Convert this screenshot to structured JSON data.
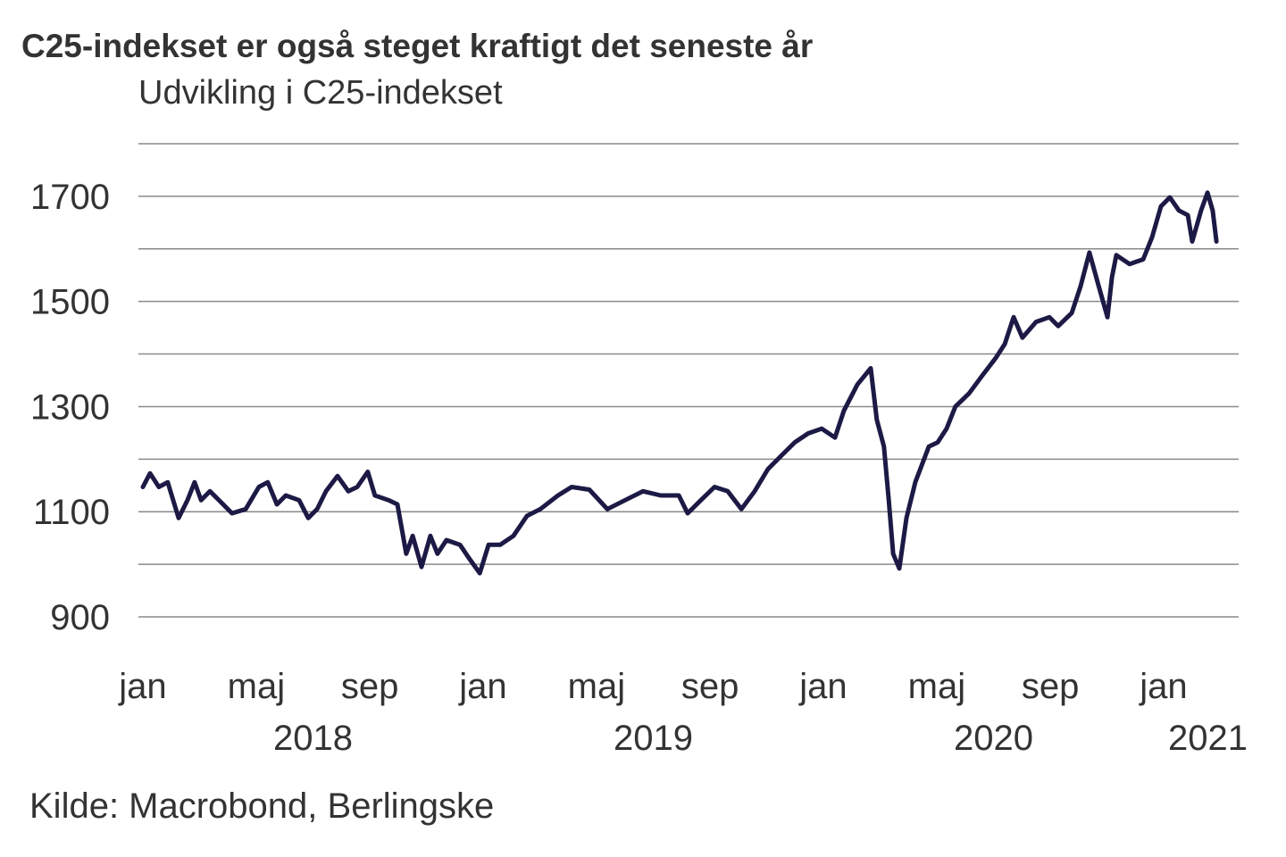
{
  "chart_data": {
    "type": "line",
    "title": "C25-indekset er også steget kraftigt det seneste år",
    "subtitle": "Udvikling i C25-indekset",
    "source": "Kilde: Macrobond, Berlingske",
    "xlabel": "",
    "ylabel": "",
    "ylim": [
      900,
      1800
    ],
    "xlim": [
      2018.0,
      2021.24
    ],
    "grid": true,
    "legend": "none",
    "y_ticks": [
      900,
      1000,
      1100,
      1200,
      1300,
      1400,
      1500,
      1600,
      1700,
      1800
    ],
    "y_tick_labels": [
      {
        "value": 900,
        "label": "900"
      },
      {
        "value": 1100,
        "label": "1100"
      },
      {
        "value": 1300,
        "label": "1300"
      },
      {
        "value": 1500,
        "label": "1500"
      },
      {
        "value": 1700,
        "label": "1700"
      }
    ],
    "x_month_labels": [
      {
        "t": 2018.0,
        "label": "jan"
      },
      {
        "t": 2018.333,
        "label": "maj"
      },
      {
        "t": 2018.667,
        "label": "sep"
      },
      {
        "t": 2019.0,
        "label": "jan"
      },
      {
        "t": 2019.333,
        "label": "maj"
      },
      {
        "t": 2019.667,
        "label": "sep"
      },
      {
        "t": 2020.0,
        "label": "jan"
      },
      {
        "t": 2020.333,
        "label": "maj"
      },
      {
        "t": 2020.667,
        "label": "sep"
      },
      {
        "t": 2021.0,
        "label": "jan"
      }
    ],
    "x_year_labels": [
      {
        "t": 2018.5,
        "label": "2018"
      },
      {
        "t": 2019.5,
        "label": "2019"
      },
      {
        "t": 2020.5,
        "label": "2020"
      },
      {
        "t": 2021.13,
        "label": "2021"
      }
    ],
    "series": [
      {
        "name": "C25-indekset",
        "color": "#1c1a45",
        "x": [
          2018.0,
          2018.021,
          2018.047,
          2018.073,
          2018.105,
          2018.131,
          2018.152,
          2018.171,
          2018.197,
          2018.236,
          2018.262,
          2018.302,
          2018.341,
          2018.367,
          2018.394,
          2018.42,
          2018.459,
          2018.486,
          2018.512,
          2018.538,
          2018.572,
          2018.604,
          2018.63,
          2018.661,
          2018.682,
          2018.722,
          2018.748,
          2018.774,
          2018.793,
          2018.819,
          2018.845,
          2018.866,
          2018.892,
          2018.932,
          2018.958,
          2018.99,
          2019.016,
          2019.05,
          2019.089,
          2019.129,
          2019.168,
          2019.22,
          2019.26,
          2019.312,
          2019.365,
          2019.417,
          2019.47,
          2019.522,
          2019.575,
          2019.601,
          2019.64,
          2019.68,
          2019.719,
          2019.759,
          2019.798,
          2019.837,
          2019.877,
          2019.916,
          2019.955,
          2019.995,
          2020.034,
          2020.06,
          2020.1,
          2020.139,
          2020.157,
          2020.178,
          2020.192,
          2020.205,
          2020.223,
          2020.244,
          2020.27,
          2020.31,
          2020.336,
          2020.362,
          2020.388,
          2020.428,
          2020.467,
          2020.507,
          2020.533,
          2020.559,
          2020.585,
          2020.625,
          2020.664,
          2020.69,
          2020.73,
          2020.756,
          2020.782,
          2020.808,
          2020.835,
          2020.848,
          2020.861,
          2020.9,
          2020.94,
          2020.966,
          2020.992,
          2021.018,
          2021.045,
          2021.071,
          2021.084,
          2021.11,
          2021.129,
          2021.144,
          2021.155
        ],
        "values": [
          1147,
          1173,
          1147,
          1156,
          1088,
          1122,
          1156,
          1122,
          1139,
          1114,
          1097,
          1105,
          1147,
          1156,
          1114,
          1131,
          1122,
          1088,
          1105,
          1139,
          1168,
          1139,
          1147,
          1176,
          1131,
          1122,
          1114,
          1020,
          1054,
          995,
          1054,
          1020,
          1046,
          1037,
          1012,
          983,
          1037,
          1037,
          1054,
          1092,
          1105,
          1131,
          1147,
          1142,
          1105,
          1122,
          1139,
          1131,
          1131,
          1097,
          1122,
          1147,
          1139,
          1105,
          1139,
          1181,
          1207,
          1232,
          1249,
          1258,
          1241,
          1292,
          1342,
          1373,
          1275,
          1224,
          1122,
          1020,
          992,
          1088,
          1156,
          1224,
          1232,
          1258,
          1300,
          1325,
          1359,
          1393,
          1419,
          1470,
          1431,
          1461,
          1470,
          1453,
          1478,
          1529,
          1593,
          1532,
          1470,
          1546,
          1588,
          1571,
          1580,
          1622,
          1681,
          1698,
          1673,
          1664,
          1614,
          1673,
          1707,
          1673,
          1614
        ]
      }
    ]
  }
}
